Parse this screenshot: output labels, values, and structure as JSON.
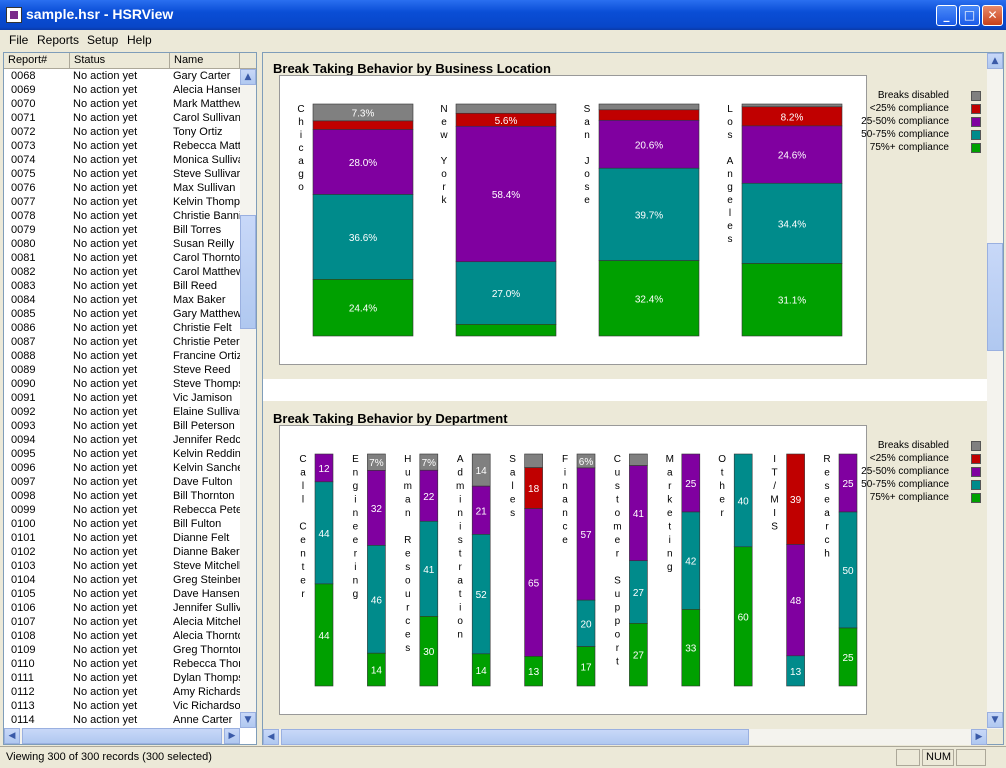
{
  "window": {
    "title": "sample.hsr - HSRView"
  },
  "menu": {
    "items": [
      "File",
      "Reports",
      "Setup",
      "Help"
    ]
  },
  "list": {
    "columns": [
      "Report#",
      "Status",
      "Name"
    ],
    "rows": [
      [
        "0068",
        "No action yet",
        "Gary Carter"
      ],
      [
        "0069",
        "No action yet",
        "Alecia Hansen"
      ],
      [
        "0070",
        "No action yet",
        "Mark Matthew"
      ],
      [
        "0071",
        "No action yet",
        "Carol Sullivan"
      ],
      [
        "0072",
        "No action yet",
        "Tony Ortiz"
      ],
      [
        "0073",
        "No action yet",
        "Rebecca Matt"
      ],
      [
        "0074",
        "No action yet",
        "Monica Sulliva"
      ],
      [
        "0075",
        "No action yet",
        "Steve Sullivar"
      ],
      [
        "0076",
        "No action yet",
        "Max Sullivan"
      ],
      [
        "0077",
        "No action yet",
        "Kelvin Thomps"
      ],
      [
        "0078",
        "No action yet",
        "Christie Banni"
      ],
      [
        "0079",
        "No action yet",
        "Bill Torres"
      ],
      [
        "0080",
        "No action yet",
        "Susan Reilly"
      ],
      [
        "0081",
        "No action yet",
        "Carol Thornto"
      ],
      [
        "0082",
        "No action yet",
        "Carol Matthew"
      ],
      [
        "0083",
        "No action yet",
        "Bill Reed"
      ],
      [
        "0084",
        "No action yet",
        "Max Baker"
      ],
      [
        "0085",
        "No action yet",
        "Gary Matthew"
      ],
      [
        "0086",
        "No action yet",
        "Christie Felt"
      ],
      [
        "0087",
        "No action yet",
        "Christie Peter"
      ],
      [
        "0088",
        "No action yet",
        "Francine Ortiz"
      ],
      [
        "0089",
        "No action yet",
        "Steve Reed"
      ],
      [
        "0090",
        "No action yet",
        "Steve Thomps"
      ],
      [
        "0091",
        "No action yet",
        "Vic Jamison"
      ],
      [
        "0092",
        "No action yet",
        "Elaine Sullivar"
      ],
      [
        "0093",
        "No action yet",
        "Bill Peterson"
      ],
      [
        "0094",
        "No action yet",
        "Jennifer Redc"
      ],
      [
        "0095",
        "No action yet",
        "Kelvin Reddin"
      ],
      [
        "0096",
        "No action yet",
        "Kelvin Sanche"
      ],
      [
        "0097",
        "No action yet",
        "Dave Fulton"
      ],
      [
        "0098",
        "No action yet",
        "Bill Thornton"
      ],
      [
        "0099",
        "No action yet",
        "Rebecca Pete"
      ],
      [
        "0100",
        "No action yet",
        "Bill Fulton"
      ],
      [
        "0101",
        "No action yet",
        "Dianne Felt"
      ],
      [
        "0102",
        "No action yet",
        "Dianne Baker"
      ],
      [
        "0103",
        "No action yet",
        "Steve Mitchell"
      ],
      [
        "0104",
        "No action yet",
        "Greg Steinber"
      ],
      [
        "0105",
        "No action yet",
        "Dave Hansen"
      ],
      [
        "0106",
        "No action yet",
        "Jennifer Sulliv"
      ],
      [
        "0107",
        "No action yet",
        "Alecia Mitchell"
      ],
      [
        "0108",
        "No action yet",
        "Alecia Thornto"
      ],
      [
        "0109",
        "No action yet",
        "Greg Thornton"
      ],
      [
        "0110",
        "No action yet",
        "Rebecca Thor"
      ],
      [
        "0111",
        "No action yet",
        "Dylan Thomps"
      ],
      [
        "0112",
        "No action yet",
        "Amy Richards"
      ],
      [
        "0113",
        "No action yet",
        "Vic Richardson"
      ],
      [
        "0114",
        "No action yet",
        "Anne Carter"
      ]
    ]
  },
  "status": {
    "text": "Viewing 300 of 300 records (300 selected)",
    "num": "NUM"
  },
  "colors": {
    "disabled": "#808080",
    "lt25": "#c00000",
    "c25_50": "#8000a0",
    "c50_75": "#008b8b",
    "c75p": "#00a000"
  },
  "legend": [
    "Breaks disabled",
    "<25% compliance",
    "25-50% compliance",
    "50-75% compliance",
    "75%+ compliance"
  ],
  "chart_data": [
    {
      "type": "bar",
      "stacked": true,
      "title": "Break Taking Behavior by Business Location",
      "categories": [
        "Chicago",
        "New York",
        "San Jose",
        "Los Angeles"
      ],
      "series": [
        {
          "name": "Breaks disabled",
          "values": [
            7.3,
            4.0,
            2.5,
            1.2
          ]
        },
        {
          "name": "<25% compliance",
          "values": [
            3.7,
            5.6,
            4.5,
            8.2
          ]
        },
        {
          "name": "25-50% compliance",
          "values": [
            28.0,
            58.4,
            20.6,
            24.6
          ]
        },
        {
          "name": "50-75% compliance",
          "values": [
            36.6,
            27.0,
            39.7,
            34.4
          ]
        },
        {
          "name": "75%+ compliance",
          "values": [
            24.4,
            5.0,
            32.4,
            31.1
          ]
        }
      ],
      "labels": [
        [
          "7.3%",
          "",
          "28.0%",
          "36.6%",
          "24.4%"
        ],
        [
          "",
          "5.6%",
          "58.4%",
          "27.0%",
          ""
        ],
        [
          "",
          "",
          "20.6%",
          "39.7%",
          "32.4%"
        ],
        [
          "",
          "8.2%",
          "24.6%",
          "34.4%",
          "31.1%"
        ]
      ]
    },
    {
      "type": "bar",
      "stacked": true,
      "title": "Break Taking Behavior by Department",
      "categories": [
        "Call Center",
        "Engineering",
        "Human Resources",
        "Administration",
        "Sales",
        "Finance",
        "Customer Support",
        "Marketing",
        "Other",
        "IT/MIS",
        "Research"
      ],
      "series": [
        {
          "name": "Breaks disabled",
          "values": [
            0,
            7,
            7,
            14,
            6,
            6,
            5,
            0,
            0,
            0,
            0
          ]
        },
        {
          "name": "<25% compliance",
          "values": [
            0,
            0,
            0,
            0,
            18,
            0,
            0,
            0,
            0,
            39,
            0
          ]
        },
        {
          "name": "25-50% compliance",
          "values": [
            12,
            32,
            22,
            21,
            65,
            57,
            41,
            25,
            0,
            48,
            25
          ]
        },
        {
          "name": "50-75% compliance",
          "values": [
            44,
            46,
            41,
            52,
            0,
            20,
            27,
            42,
            40,
            13,
            50
          ]
        },
        {
          "name": "75%+ compliance",
          "values": [
            44,
            14,
            30,
            14,
            13,
            17,
            27,
            33,
            60,
            0,
            25
          ]
        }
      ],
      "labels": [
        [
          "",
          "",
          "12",
          "44",
          "44"
        ],
        [
          "7%",
          "",
          "32",
          "46",
          "14"
        ],
        [
          "7%",
          "",
          "22",
          "41",
          "30"
        ],
        [
          "14",
          "",
          "21",
          "52",
          "14"
        ],
        [
          "",
          "18",
          "65",
          "",
          "13"
        ],
        [
          "6%",
          "",
          "57",
          "20",
          "17"
        ],
        [
          "",
          "",
          "41",
          "27",
          "27"
        ],
        [
          "",
          "",
          "25",
          "42",
          "33"
        ],
        [
          "",
          "",
          "",
          "40",
          "60"
        ],
        [
          "",
          "39",
          "48",
          "13",
          ""
        ],
        [
          "",
          "",
          "25",
          "50",
          "25"
        ]
      ]
    }
  ]
}
